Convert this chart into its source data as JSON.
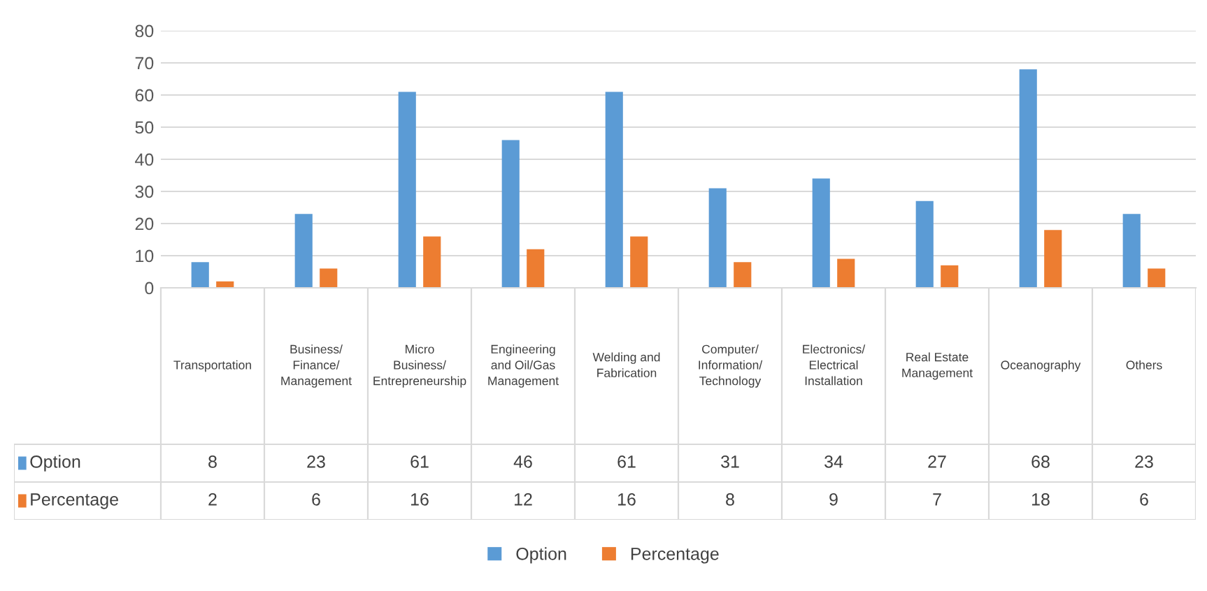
{
  "chart_data": {
    "type": "bar",
    "categories": [
      "Transportation",
      "Business/Finance/Management",
      "Micro Business/Entrepreneurship",
      "Engineering and Oil/Gas Management",
      "Welding and Fabrication",
      "Computer/Information/Technology",
      "Electronics/Electrical Installation",
      "Real Estate Management",
      "Oceanography",
      "Others"
    ],
    "series": [
      {
        "name": "Option",
        "color": "#5b9bd5",
        "values": [
          8,
          23,
          61,
          46,
          61,
          31,
          34,
          27,
          68,
          23
        ]
      },
      {
        "name": "Percentage",
        "color": "#ed7d31",
        "values": [
          2,
          6,
          16,
          12,
          16,
          8,
          9,
          7,
          18,
          6
        ]
      }
    ],
    "ylim": [
      0,
      80
    ],
    "yticks": [
      0,
      10,
      20,
      30,
      40,
      50,
      60,
      70,
      80
    ],
    "grid": "y",
    "legend": "bottom",
    "data_labels": true
  }
}
